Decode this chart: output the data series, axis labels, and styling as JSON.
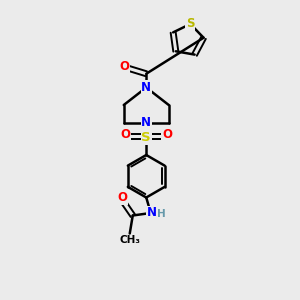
{
  "background_color": "#ebebeb",
  "colors": {
    "C": "#000000",
    "N": "#0000ff",
    "O": "#ff0000",
    "S_thio": "#b8b800",
    "S_sulfonyl": "#cccc00",
    "H": "#6699aa",
    "bond": "#000000"
  },
  "figsize": [
    3.0,
    3.0
  ],
  "dpi": 100,
  "xlim": [
    0,
    10
  ],
  "ylim": [
    0,
    12
  ]
}
